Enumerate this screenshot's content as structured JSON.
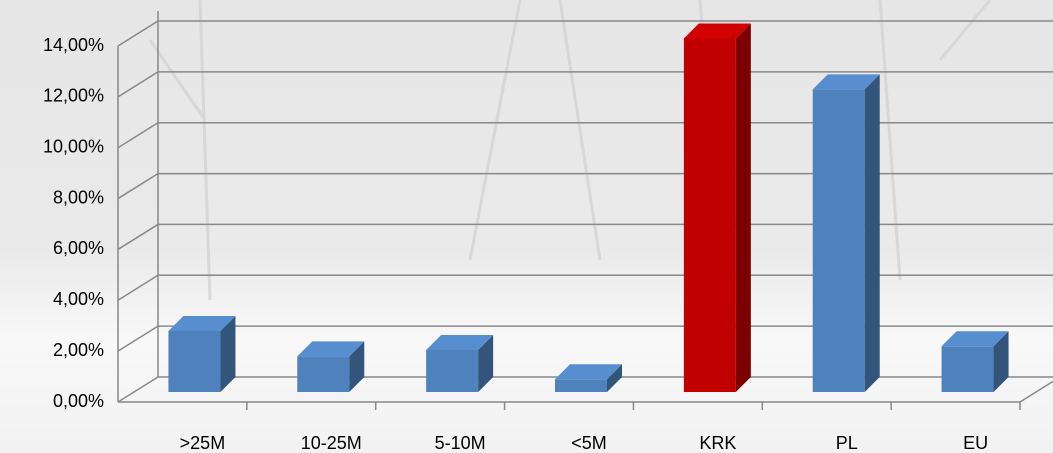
{
  "chart_data": {
    "type": "bar3d",
    "categories": [
      ">25M",
      "10-25M",
      "5-10M",
      "<5M",
      "KRK",
      "PL",
      "EU"
    ],
    "values": [
      2.4,
      1.4,
      1.65,
      0.5,
      13.9,
      11.9,
      1.8
    ],
    "colors": [
      "#4f81bd",
      "#4f81bd",
      "#4f81bd",
      "#4f81bd",
      "#c00000",
      "#4f81bd",
      "#4f81bd"
    ],
    "ylim": [
      0,
      14
    ],
    "yticks": [
      {
        "value": 0,
        "label": "0,00%"
      },
      {
        "value": 2,
        "label": "2,00%"
      },
      {
        "value": 4,
        "label": "4,00%"
      },
      {
        "value": 6,
        "label": "6,00%"
      },
      {
        "value": 8,
        "label": "8,00%"
      },
      {
        "value": 10,
        "label": "10,00%"
      },
      {
        "value": 12,
        "label": "12,00%"
      },
      {
        "value": 14,
        "label": "14,00%"
      }
    ],
    "grid": true
  }
}
